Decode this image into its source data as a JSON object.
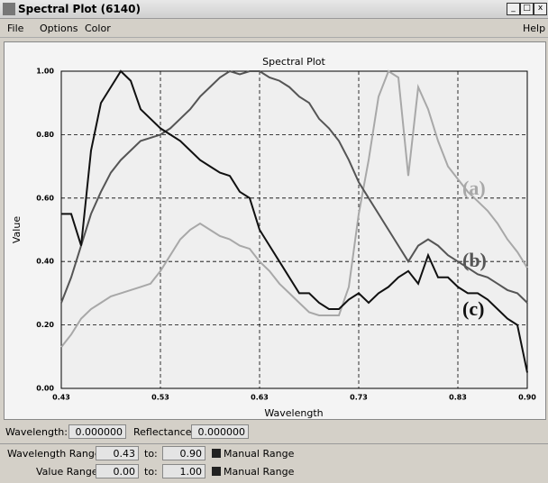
{
  "window": {
    "title": "Spectral Plot (6140)",
    "menu": [
      "File",
      "Options",
      "Color",
      "Help"
    ]
  },
  "chart_data": {
    "type": "line",
    "title": "Spectral Plot",
    "x_label": "Wavelength",
    "y_label": "Value",
    "x": [
      0.43,
      0.44,
      0.45,
      0.46,
      0.47,
      0.48,
      0.49,
      0.5,
      0.51,
      0.52,
      0.53,
      0.54,
      0.55,
      0.56,
      0.57,
      0.58,
      0.59,
      0.6,
      0.61,
      0.62,
      0.63,
      0.64,
      0.65,
      0.66,
      0.67,
      0.68,
      0.69,
      0.7,
      0.71,
      0.72,
      0.73,
      0.74,
      0.75,
      0.76,
      0.77,
      0.78,
      0.79,
      0.8,
      0.81,
      0.82,
      0.83,
      0.84,
      0.85,
      0.86,
      0.87,
      0.88,
      0.89,
      0.9
    ],
    "series": [
      {
        "label": "(a)",
        "color": "#a8a8a8",
        "values": [
          0.13,
          0.17,
          0.22,
          0.25,
          0.27,
          0.29,
          0.3,
          0.31,
          0.32,
          0.33,
          0.37,
          0.42,
          0.47,
          0.5,
          0.52,
          0.5,
          0.48,
          0.47,
          0.45,
          0.44,
          0.4,
          0.37,
          0.33,
          0.3,
          0.27,
          0.24,
          0.23,
          0.23,
          0.23,
          0.32,
          0.55,
          0.72,
          0.92,
          1.0,
          0.98,
          0.67,
          0.95,
          0.88,
          0.78,
          0.7,
          0.66,
          0.62,
          0.59,
          0.56,
          0.52,
          0.47,
          0.43,
          0.38
        ]
      },
      {
        "label": "(b)",
        "color": "#555555",
        "values": [
          0.27,
          0.35,
          0.45,
          0.55,
          0.62,
          0.68,
          0.72,
          0.75,
          0.78,
          0.79,
          0.8,
          0.82,
          0.85,
          0.88,
          0.92,
          0.95,
          0.98,
          1.0,
          0.99,
          1.0,
          1.0,
          0.98,
          0.97,
          0.95,
          0.92,
          0.9,
          0.85,
          0.82,
          0.78,
          0.72,
          0.65,
          0.6,
          0.55,
          0.5,
          0.45,
          0.4,
          0.45,
          0.47,
          0.45,
          0.42,
          0.4,
          0.38,
          0.36,
          0.35,
          0.33,
          0.31,
          0.3,
          0.27
        ]
      },
      {
        "label": "(c)",
        "color": "#111111",
        "values": [
          0.55,
          0.55,
          0.45,
          0.75,
          0.9,
          0.95,
          1.0,
          0.97,
          0.88,
          0.85,
          0.82,
          0.8,
          0.78,
          0.75,
          0.72,
          0.7,
          0.68,
          0.67,
          0.62,
          0.6,
          0.5,
          0.45,
          0.4,
          0.35,
          0.3,
          0.3,
          0.27,
          0.25,
          0.25,
          0.28,
          0.3,
          0.27,
          0.3,
          0.32,
          0.35,
          0.37,
          0.33,
          0.42,
          0.35,
          0.35,
          0.32,
          0.3,
          0.3,
          0.28,
          0.25,
          0.22,
          0.2,
          0.05
        ]
      }
    ],
    "xlim": [
      0.43,
      0.9
    ],
    "ylim": [
      0,
      1
    ],
    "xticks": [
      0.43,
      0.53,
      0.63,
      0.73,
      0.83,
      {
        "value": 0.9,
        "label": "0.90"
      }
    ],
    "yticks": [
      {
        "value": 0,
        "label": "0.00"
      },
      {
        "value": 0.2,
        "label": "0.20"
      },
      {
        "value": 0.4,
        "label": "0.40"
      },
      {
        "value": 0.6,
        "label": "0.60"
      },
      {
        "value": 0.8,
        "label": "0.80"
      },
      {
        "value": 1,
        "label": "1.00"
      }
    ],
    "grid": true
  },
  "readout": {
    "wavelength_label": "Wavelength:",
    "wavelength_value": "0.000000",
    "reflectance_label": "Reflectance:",
    "reflectance_value": "0.000000"
  },
  "ranges": [
    {
      "label": "Wavelength Range:",
      "min": "0.43",
      "to_label": "to:",
      "max": "0.90",
      "checkbox": "Manual Range"
    },
    {
      "label": "Value Range:",
      "min": "0.00",
      "to_label": "to:",
      "max": "1.00",
      "checkbox": "Manual Range"
    }
  ]
}
